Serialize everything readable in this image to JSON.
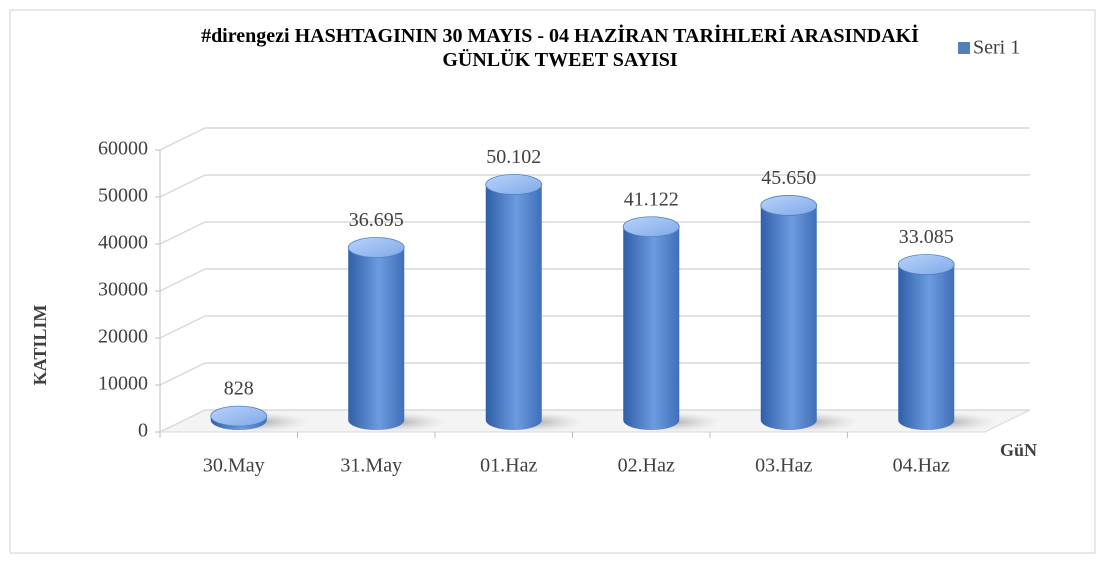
{
  "chart_data": {
    "type": "bar3d",
    "title": "#direngezi HASHTAGININ 30 MAYIS - 04 HAZİRAN TARİHLERİ ARASINDAKİ GÜNLÜK TWEET SAYISI",
    "x_label": "GüN",
    "y_label": "KATILIM",
    "categories": [
      "30.May",
      "31.May",
      "01.Haz",
      "02.Haz",
      "03.Haz",
      "04.Haz"
    ],
    "series": [
      {
        "name": "Seri 1",
        "color": "#4f81bd",
        "values": [
          828,
          36695,
          50102,
          41122,
          45650,
          33085
        ],
        "value_labels": [
          "828",
          "36.695",
          "50.102",
          "41.122",
          "45.650",
          "33.085"
        ]
      }
    ],
    "ylim": [
      0,
      60000
    ],
    "yticks": [
      0,
      10000,
      20000,
      30000,
      40000,
      50000,
      60000
    ],
    "grid": true,
    "legend": "top-right"
  }
}
